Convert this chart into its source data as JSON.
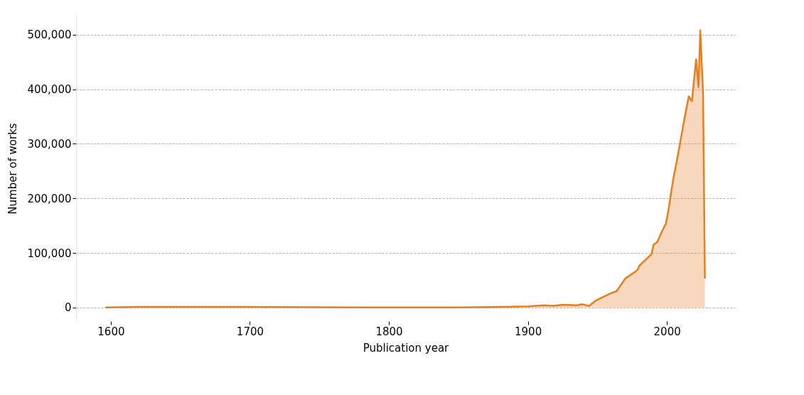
{
  "chart_data": {
    "type": "area",
    "xlabel": "Publication year",
    "ylabel": "Number of works",
    "x": [
      1596,
      1620,
      1700,
      1800,
      1850,
      1880,
      1900,
      1912,
      1918,
      1925,
      1935.6,
      1938.8,
      1944,
      1949,
      1959.5,
      1963.8,
      1970,
      1978.6,
      1980.3,
      1989,
      1990.3,
      1993,
      1996.7,
      1999.3,
      2001,
      2004.5,
      2007,
      2009.7,
      2013,
      2015.7,
      2018,
      2021,
      2022.7,
      2024,
      2026,
      2027.3
    ],
    "series": [
      {
        "color": "#e67e22",
        "values": [
          0,
          1000,
          1000,
          0,
          0,
          1000,
          2000,
          4000,
          3000,
          5000,
          4000,
          6000,
          3000,
          13000,
          26000,
          30000,
          53000,
          68000,
          77000,
          98000,
          115000,
          120000,
          141000,
          154000,
          177000,
          235000,
          267000,
          305000,
          352000,
          387000,
          378000,
          455000,
          404000,
          508000,
          391000,
          53000
        ]
      }
    ],
    "xlim": [
      1575,
      2049
    ],
    "ylim": [
      -25000,
      535000
    ],
    "xticks": [
      1600,
      1700,
      1800,
      1900,
      2000
    ],
    "yticks": [
      {
        "value": 0,
        "label": "0"
      },
      {
        "value": 100000,
        "label": "100,000"
      },
      {
        "value": 200000,
        "label": "200,000"
      },
      {
        "value": 300000,
        "label": "300,000"
      },
      {
        "value": 400000,
        "label": "400,000"
      },
      {
        "value": 500000,
        "label": "500,000"
      }
    ],
    "grid": "y"
  }
}
